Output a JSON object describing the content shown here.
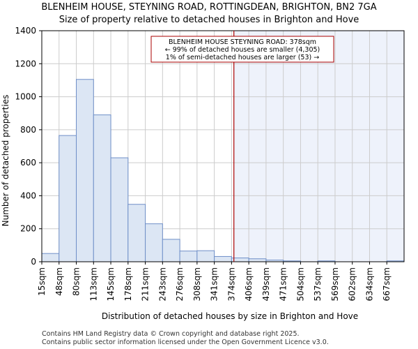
{
  "chart_data": {
    "type": "bar",
    "title": "BLENHEIM HOUSE, STEYNING ROAD, ROTTINGDEAN, BRIGHTON, BN2 7GA",
    "subtitle": "Size of property relative to detached houses in Brighton and Hove",
    "xlabel": "Distribution of detached houses by size in Brighton and Hove",
    "ylabel": "Number of detached properties",
    "categories": [
      "15sqm",
      "48sqm",
      "80sqm",
      "113sqm",
      "145sqm",
      "178sqm",
      "211sqm",
      "243sqm",
      "276sqm",
      "308sqm",
      "341sqm",
      "374sqm",
      "406sqm",
      "439sqm",
      "471sqm",
      "504sqm",
      "537sqm",
      "569sqm",
      "602sqm",
      "634sqm",
      "667sqm"
    ],
    "values": [
      50,
      765,
      1105,
      890,
      630,
      348,
      230,
      136,
      65,
      67,
      32,
      23,
      18,
      10,
      5,
      0,
      5,
      0,
      0,
      0,
      5
    ],
    "ylim": [
      0,
      1400
    ],
    "yticks": [
      0,
      200,
      400,
      600,
      800,
      1000,
      1200,
      1400
    ],
    "grid": true,
    "marker": {
      "value_sqm": 378,
      "label_lines": [
        "BLENHEIM HOUSE STEYNING ROAD: 378sqm",
        "← 99% of detached houses are smaller (4,305)",
        "1% of semi-detached houses are larger (53) →"
      ],
      "color": "#aa0000"
    },
    "colors": {
      "bar_fill": "#dce6f4",
      "bar_stroke": "#6f8fc8",
      "highlight_region": "#eef2fb",
      "grid": "#cccccc"
    }
  },
  "footer": {
    "line1": "Contains HM Land Registry data © Crown copyright and database right 2025.",
    "line2": "Contains public sector information licensed under the Open Government Licence v3.0."
  }
}
